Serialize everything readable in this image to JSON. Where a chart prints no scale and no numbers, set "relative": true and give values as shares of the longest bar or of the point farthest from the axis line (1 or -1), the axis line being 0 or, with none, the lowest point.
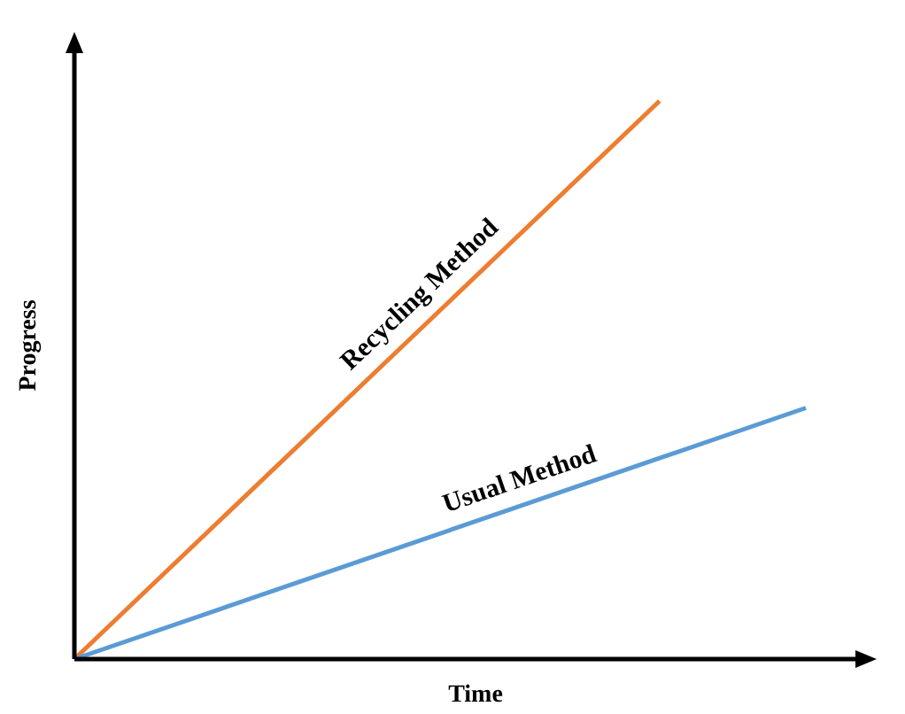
{
  "chart_data": {
    "type": "line",
    "relative": true,
    "xlabel": "Time",
    "ylabel": "Progress",
    "line_style": "solid",
    "categories": [
      null,
      null,
      null,
      null,
      null,
      null
    ],
    "series": [
      {
        "name": "Recycling Method",
        "color": "#ed7d31",
        "values": [
          0,
          0.25,
          0.5,
          0.75,
          1,
          null
        ]
      },
      {
        "name": "Usual Method",
        "color": "#5b9bd5",
        "values": [
          0,
          0.09,
          0.18,
          0.27,
          0.36,
          0.45
        ]
      }
    ]
  }
}
